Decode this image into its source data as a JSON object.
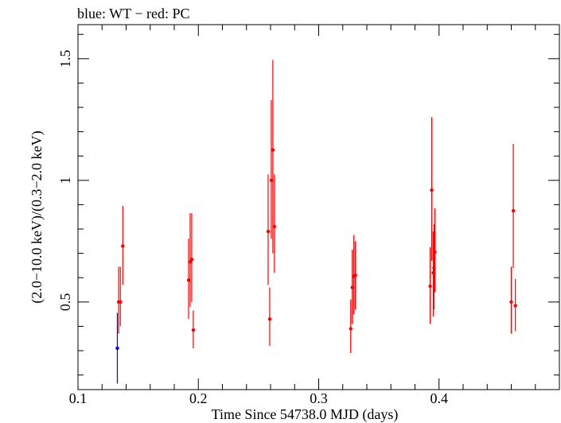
{
  "chart_data": {
    "type": "scatter",
    "title": "blue: WT − red: PC",
    "xlabel": "Time Since 54738.0 MJD (days)",
    "ylabel": "(2.0−10.0 keV)/(0.3−2.0 keV)",
    "xlim": [
      0.1,
      0.5
    ],
    "ylim": [
      0.14,
      1.64
    ],
    "xticks": [
      {
        "value": 0.1,
        "label": "0.1"
      },
      {
        "value": 0.2,
        "label": "0.2"
      },
      {
        "value": 0.3,
        "label": "0.3"
      },
      {
        "value": 0.4,
        "label": "0.4"
      }
    ],
    "yticks": [
      {
        "value": 0.5,
        "label": "0.5"
      },
      {
        "value": 1.0,
        "label": "1"
      },
      {
        "value": 1.5,
        "label": "1.5"
      }
    ],
    "series": [
      {
        "name": "WT",
        "color": "#0000ff",
        "points": [
          {
            "x": 0.1327,
            "y": 0.31,
            "lo": 0.165,
            "hi": 0.455
          }
        ]
      },
      {
        "name": "PC",
        "color": "#ff0000",
        "points": [
          {
            "x": 0.1338,
            "y": 0.5,
            "lo": 0.37,
            "hi": 0.645
          },
          {
            "x": 0.1352,
            "y": 0.5,
            "lo": 0.4,
            "hi": 0.645
          },
          {
            "x": 0.1372,
            "y": 0.73,
            "lo": 0.57,
            "hi": 0.895
          },
          {
            "x": 0.1919,
            "y": 0.59,
            "lo": 0.43,
            "hi": 0.76
          },
          {
            "x": 0.1932,
            "y": 0.665,
            "lo": 0.48,
            "hi": 0.865
          },
          {
            "x": 0.1945,
            "y": 0.675,
            "lo": 0.5,
            "hi": 0.865
          },
          {
            "x": 0.1958,
            "y": 0.385,
            "lo": 0.31,
            "hi": 0.465
          },
          {
            "x": 0.258,
            "y": 0.79,
            "lo": 0.57,
            "hi": 1.025
          },
          {
            "x": 0.2593,
            "y": 0.43,
            "lo": 0.32,
            "hi": 0.56
          },
          {
            "x": 0.2606,
            "y": 1.0,
            "lo": 0.76,
            "hi": 1.33
          },
          {
            "x": 0.2619,
            "y": 1.125,
            "lo": 0.7,
            "hi": 1.495
          },
          {
            "x": 0.2632,
            "y": 0.81,
            "lo": 0.62,
            "hi": 1.025
          },
          {
            "x": 0.3266,
            "y": 0.39,
            "lo": 0.29,
            "hi": 0.51
          },
          {
            "x": 0.3279,
            "y": 0.56,
            "lo": 0.41,
            "hi": 0.715
          },
          {
            "x": 0.3292,
            "y": 0.605,
            "lo": 0.45,
            "hi": 0.775
          },
          {
            "x": 0.3305,
            "y": 0.61,
            "lo": 0.47,
            "hi": 0.75
          },
          {
            "x": 0.3926,
            "y": 0.565,
            "lo": 0.41,
            "hi": 0.725
          },
          {
            "x": 0.3939,
            "y": 0.96,
            "lo": 0.67,
            "hi": 1.26
          },
          {
            "x": 0.3952,
            "y": 0.62,
            "lo": 0.44,
            "hi": 0.79
          },
          {
            "x": 0.3958,
            "y": 0.64,
            "lo": 0.47,
            "hi": 0.82
          },
          {
            "x": 0.3965,
            "y": 0.705,
            "lo": 0.54,
            "hi": 0.885
          },
          {
            "x": 0.46,
            "y": 0.5,
            "lo": 0.37,
            "hi": 0.645
          },
          {
            "x": 0.4617,
            "y": 0.875,
            "lo": 0.64,
            "hi": 1.15
          },
          {
            "x": 0.4634,
            "y": 0.485,
            "lo": 0.38,
            "hi": 0.595
          }
        ]
      }
    ]
  }
}
